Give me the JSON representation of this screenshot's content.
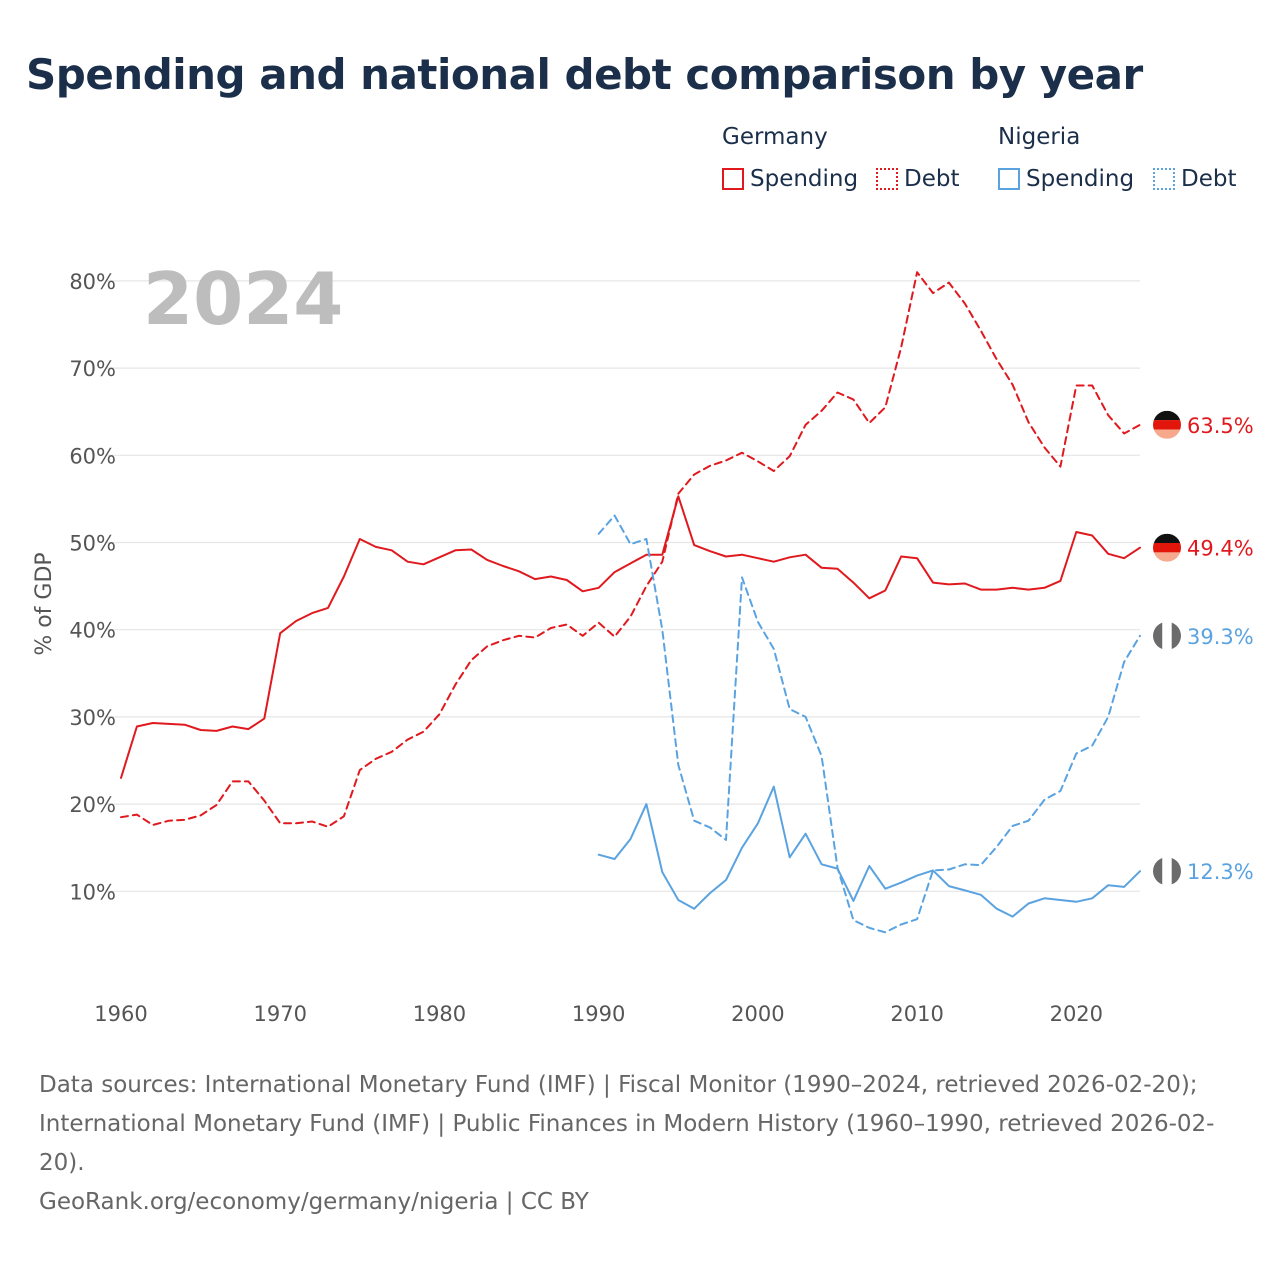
{
  "title": "Spending and national debt comparison by year",
  "legend": {
    "groups": [
      {
        "name": "Germany",
        "color": "#e0191e",
        "entries": [
          {
            "label": "Spending",
            "style": "solid"
          },
          {
            "label": "Debt",
            "style": "dashed"
          }
        ]
      },
      {
        "name": "Nigeria",
        "color": "#5aa3e0",
        "entries": [
          {
            "label": "Spending",
            "style": "solid"
          },
          {
            "label": "Debt",
            "style": "dashed"
          }
        ]
      }
    ]
  },
  "chart_data": {
    "type": "line",
    "title": "Spending and national debt comparison by year",
    "year_watermark": "2024",
    "xlabel": "",
    "ylabel": "% of GDP",
    "xlim": [
      1960,
      2024
    ],
    "ylim": [
      0,
      82
    ],
    "x_ticks": [
      1960,
      1970,
      1980,
      1990,
      2000,
      2010,
      2020
    ],
    "y_ticks": [
      10,
      20,
      30,
      40,
      50,
      60,
      70,
      80
    ],
    "y_tick_labels": [
      "10%",
      "20%",
      "30%",
      "40%",
      "50%",
      "60%",
      "70%",
      "80%"
    ],
    "series": [
      {
        "name": "Germany Spending",
        "country": "Germany",
        "metric": "Spending",
        "color": "#e0191e",
        "dashed": false,
        "end_label": "49.4%",
        "x": [
          1960,
          1961,
          1962,
          1963,
          1964,
          1965,
          1966,
          1967,
          1968,
          1969,
          1970,
          1971,
          1972,
          1973,
          1974,
          1975,
          1976,
          1977,
          1978,
          1979,
          1980,
          1981,
          1982,
          1983,
          1984,
          1985,
          1986,
          1987,
          1988,
          1989,
          1990,
          1991,
          1992,
          1993,
          1994,
          1995,
          1996,
          1997,
          1998,
          1999,
          2000,
          2001,
          2002,
          2003,
          2004,
          2005,
          2006,
          2007,
          2008,
          2009,
          2010,
          2011,
          2012,
          2013,
          2014,
          2015,
          2016,
          2017,
          2018,
          2019,
          2020,
          2021,
          2022,
          2023,
          2024
        ],
        "y": [
          23.0,
          28.9,
          29.3,
          29.2,
          29.1,
          28.5,
          28.4,
          28.9,
          28.6,
          29.8,
          39.6,
          41.0,
          41.9,
          42.5,
          46.1,
          50.4,
          49.5,
          49.1,
          47.8,
          47.5,
          48.3,
          49.1,
          49.2,
          48.0,
          47.3,
          46.7,
          45.8,
          46.1,
          45.7,
          44.4,
          44.8,
          46.6,
          47.6,
          48.6,
          48.6,
          55.3,
          49.7,
          49.0,
          48.4,
          48.6,
          48.2,
          47.8,
          48.3,
          48.6,
          47.1,
          47.0,
          45.4,
          43.6,
          44.5,
          48.4,
          48.2,
          45.4,
          45.2,
          45.3,
          44.6,
          44.6,
          44.8,
          44.6,
          44.8,
          45.6,
          51.2,
          50.8,
          48.7,
          48.2,
          49.4
        ]
      },
      {
        "name": "Germany Debt",
        "country": "Germany",
        "metric": "Debt",
        "color": "#e0191e",
        "dashed": true,
        "end_label": "63.5%",
        "x": [
          1960,
          1961,
          1962,
          1963,
          1964,
          1965,
          1966,
          1967,
          1968,
          1969,
          1970,
          1971,
          1972,
          1973,
          1974,
          1975,
          1976,
          1977,
          1978,
          1979,
          1980,
          1981,
          1982,
          1983,
          1984,
          1985,
          1986,
          1987,
          1988,
          1989,
          1990,
          1991,
          1992,
          1993,
          1994,
          1995,
          1996,
          1997,
          1998,
          1999,
          2000,
          2001,
          2002,
          2003,
          2004,
          2005,
          2006,
          2007,
          2008,
          2009,
          2010,
          2011,
          2012,
          2013,
          2014,
          2015,
          2016,
          2017,
          2018,
          2019,
          2020,
          2021,
          2022,
          2023,
          2024
        ],
        "y": [
          18.5,
          18.8,
          17.6,
          18.1,
          18.2,
          18.7,
          19.9,
          22.6,
          22.6,
          20.4,
          17.8,
          17.8,
          18.0,
          17.4,
          18.6,
          23.9,
          25.2,
          26.0,
          27.4,
          28.3,
          30.3,
          33.7,
          36.5,
          38.1,
          38.8,
          39.3,
          39.1,
          40.2,
          40.6,
          39.3,
          40.8,
          39.2,
          41.5,
          45.0,
          47.8,
          55.6,
          57.8,
          58.8,
          59.4,
          60.3,
          59.3,
          58.2,
          59.9,
          63.5,
          65.1,
          67.2,
          66.4,
          63.7,
          65.5,
          72.4,
          81.0,
          78.6,
          79.8,
          77.4,
          74.3,
          71.0,
          68.1,
          63.8,
          60.9,
          58.7,
          68.0,
          68.0,
          64.6,
          62.5,
          63.5
        ]
      },
      {
        "name": "Nigeria Spending",
        "country": "Nigeria",
        "metric": "Spending",
        "color": "#5aa3e0",
        "dashed": false,
        "end_label": "12.3%",
        "x": [
          1990,
          1991,
          1992,
          1993,
          1994,
          1995,
          1996,
          1997,
          1998,
          1999,
          2000,
          2001,
          2002,
          2003,
          2004,
          2005,
          2006,
          2007,
          2008,
          2009,
          2010,
          2011,
          2012,
          2013,
          2014,
          2015,
          2016,
          2017,
          2018,
          2019,
          2020,
          2021,
          2022,
          2023,
          2024
        ],
        "y": [
          14.2,
          13.7,
          16.0,
          20.0,
          12.2,
          9.0,
          8.0,
          9.8,
          11.3,
          15.0,
          17.8,
          22.0,
          13.9,
          16.6,
          13.1,
          12.6,
          8.9,
          12.9,
          10.3,
          11.0,
          11.8,
          12.4,
          10.6,
          10.1,
          9.6,
          8.0,
          7.1,
          8.6,
          9.2,
          9.0,
          8.8,
          9.2,
          10.7,
          10.5,
          12.3
        ]
      },
      {
        "name": "Nigeria Debt",
        "country": "Nigeria",
        "metric": "Debt",
        "color": "#5aa3e0",
        "dashed": true,
        "end_label": "39.3%",
        "x": [
          1990,
          1991,
          1992,
          1993,
          1994,
          1995,
          1996,
          1997,
          1998,
          1999,
          2000,
          2001,
          2002,
          2003,
          2004,
          2005,
          2006,
          2007,
          2008,
          2009,
          2010,
          2011,
          2012,
          2013,
          2014,
          2015,
          2016,
          2017,
          2018,
          2019,
          2020,
          2021,
          2022,
          2023,
          2024
        ],
        "y": [
          51.0,
          53.1,
          49.8,
          50.4,
          40.0,
          24.5,
          18.1,
          17.3,
          15.9,
          46.0,
          40.9,
          37.8,
          30.9,
          30.0,
          25.5,
          12.7,
          6.7,
          5.8,
          5.3,
          6.2,
          6.8,
          12.4,
          12.5,
          13.1,
          13.0,
          15.1,
          17.5,
          18.1,
          20.5,
          21.5,
          25.8,
          26.7,
          30.0,
          36.3,
          39.3
        ]
      }
    ]
  },
  "footer": {
    "sources": "Data sources: International Monetary Fund (IMF) | Fiscal Monitor (1990–2024, retrieved 2026-02-20); International Monetary Fund (IMF) | Public Finances in Modern History (1960–1990, retrieved 2026-02-20).",
    "credit": "GeoRank.org/economy/germany/nigeria | CC BY"
  }
}
